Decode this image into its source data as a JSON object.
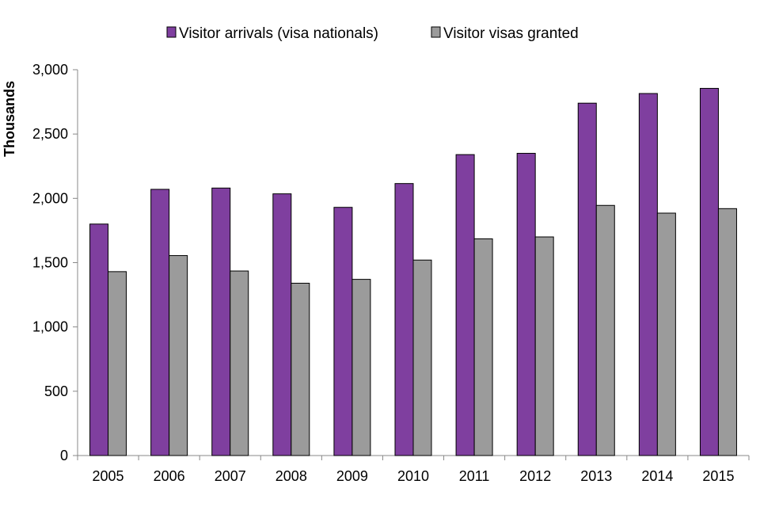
{
  "chart_data": {
    "type": "bar",
    "title": "",
    "xlabel": "",
    "ylabel": "Thousands",
    "ylim": [
      0,
      3000
    ],
    "yticks": [
      0,
      500,
      1000,
      1500,
      2000,
      2500,
      3000
    ],
    "ytick_labels": [
      "0",
      "500",
      "1,000",
      "1,500",
      "2,000",
      "2,500",
      "3,000"
    ],
    "grid": false,
    "legend_position": "top-center",
    "categories": [
      "2005",
      "2006",
      "2007",
      "2008",
      "2009",
      "2010",
      "2011",
      "2012",
      "2013",
      "2014",
      "2015"
    ],
    "series": [
      {
        "name": "Visitor arrivals (visa nationals)",
        "color": "#7f3f9f",
        "values": [
          1800,
          2070,
          2080,
          2035,
          1930,
          2115,
          2340,
          2350,
          2740,
          2815,
          2855
        ]
      },
      {
        "name": "Visitor visas granted",
        "color": "#9b9b9b",
        "values": [
          1430,
          1555,
          1435,
          1340,
          1370,
          1520,
          1685,
          1700,
          1945,
          1885,
          1920
        ]
      }
    ]
  }
}
